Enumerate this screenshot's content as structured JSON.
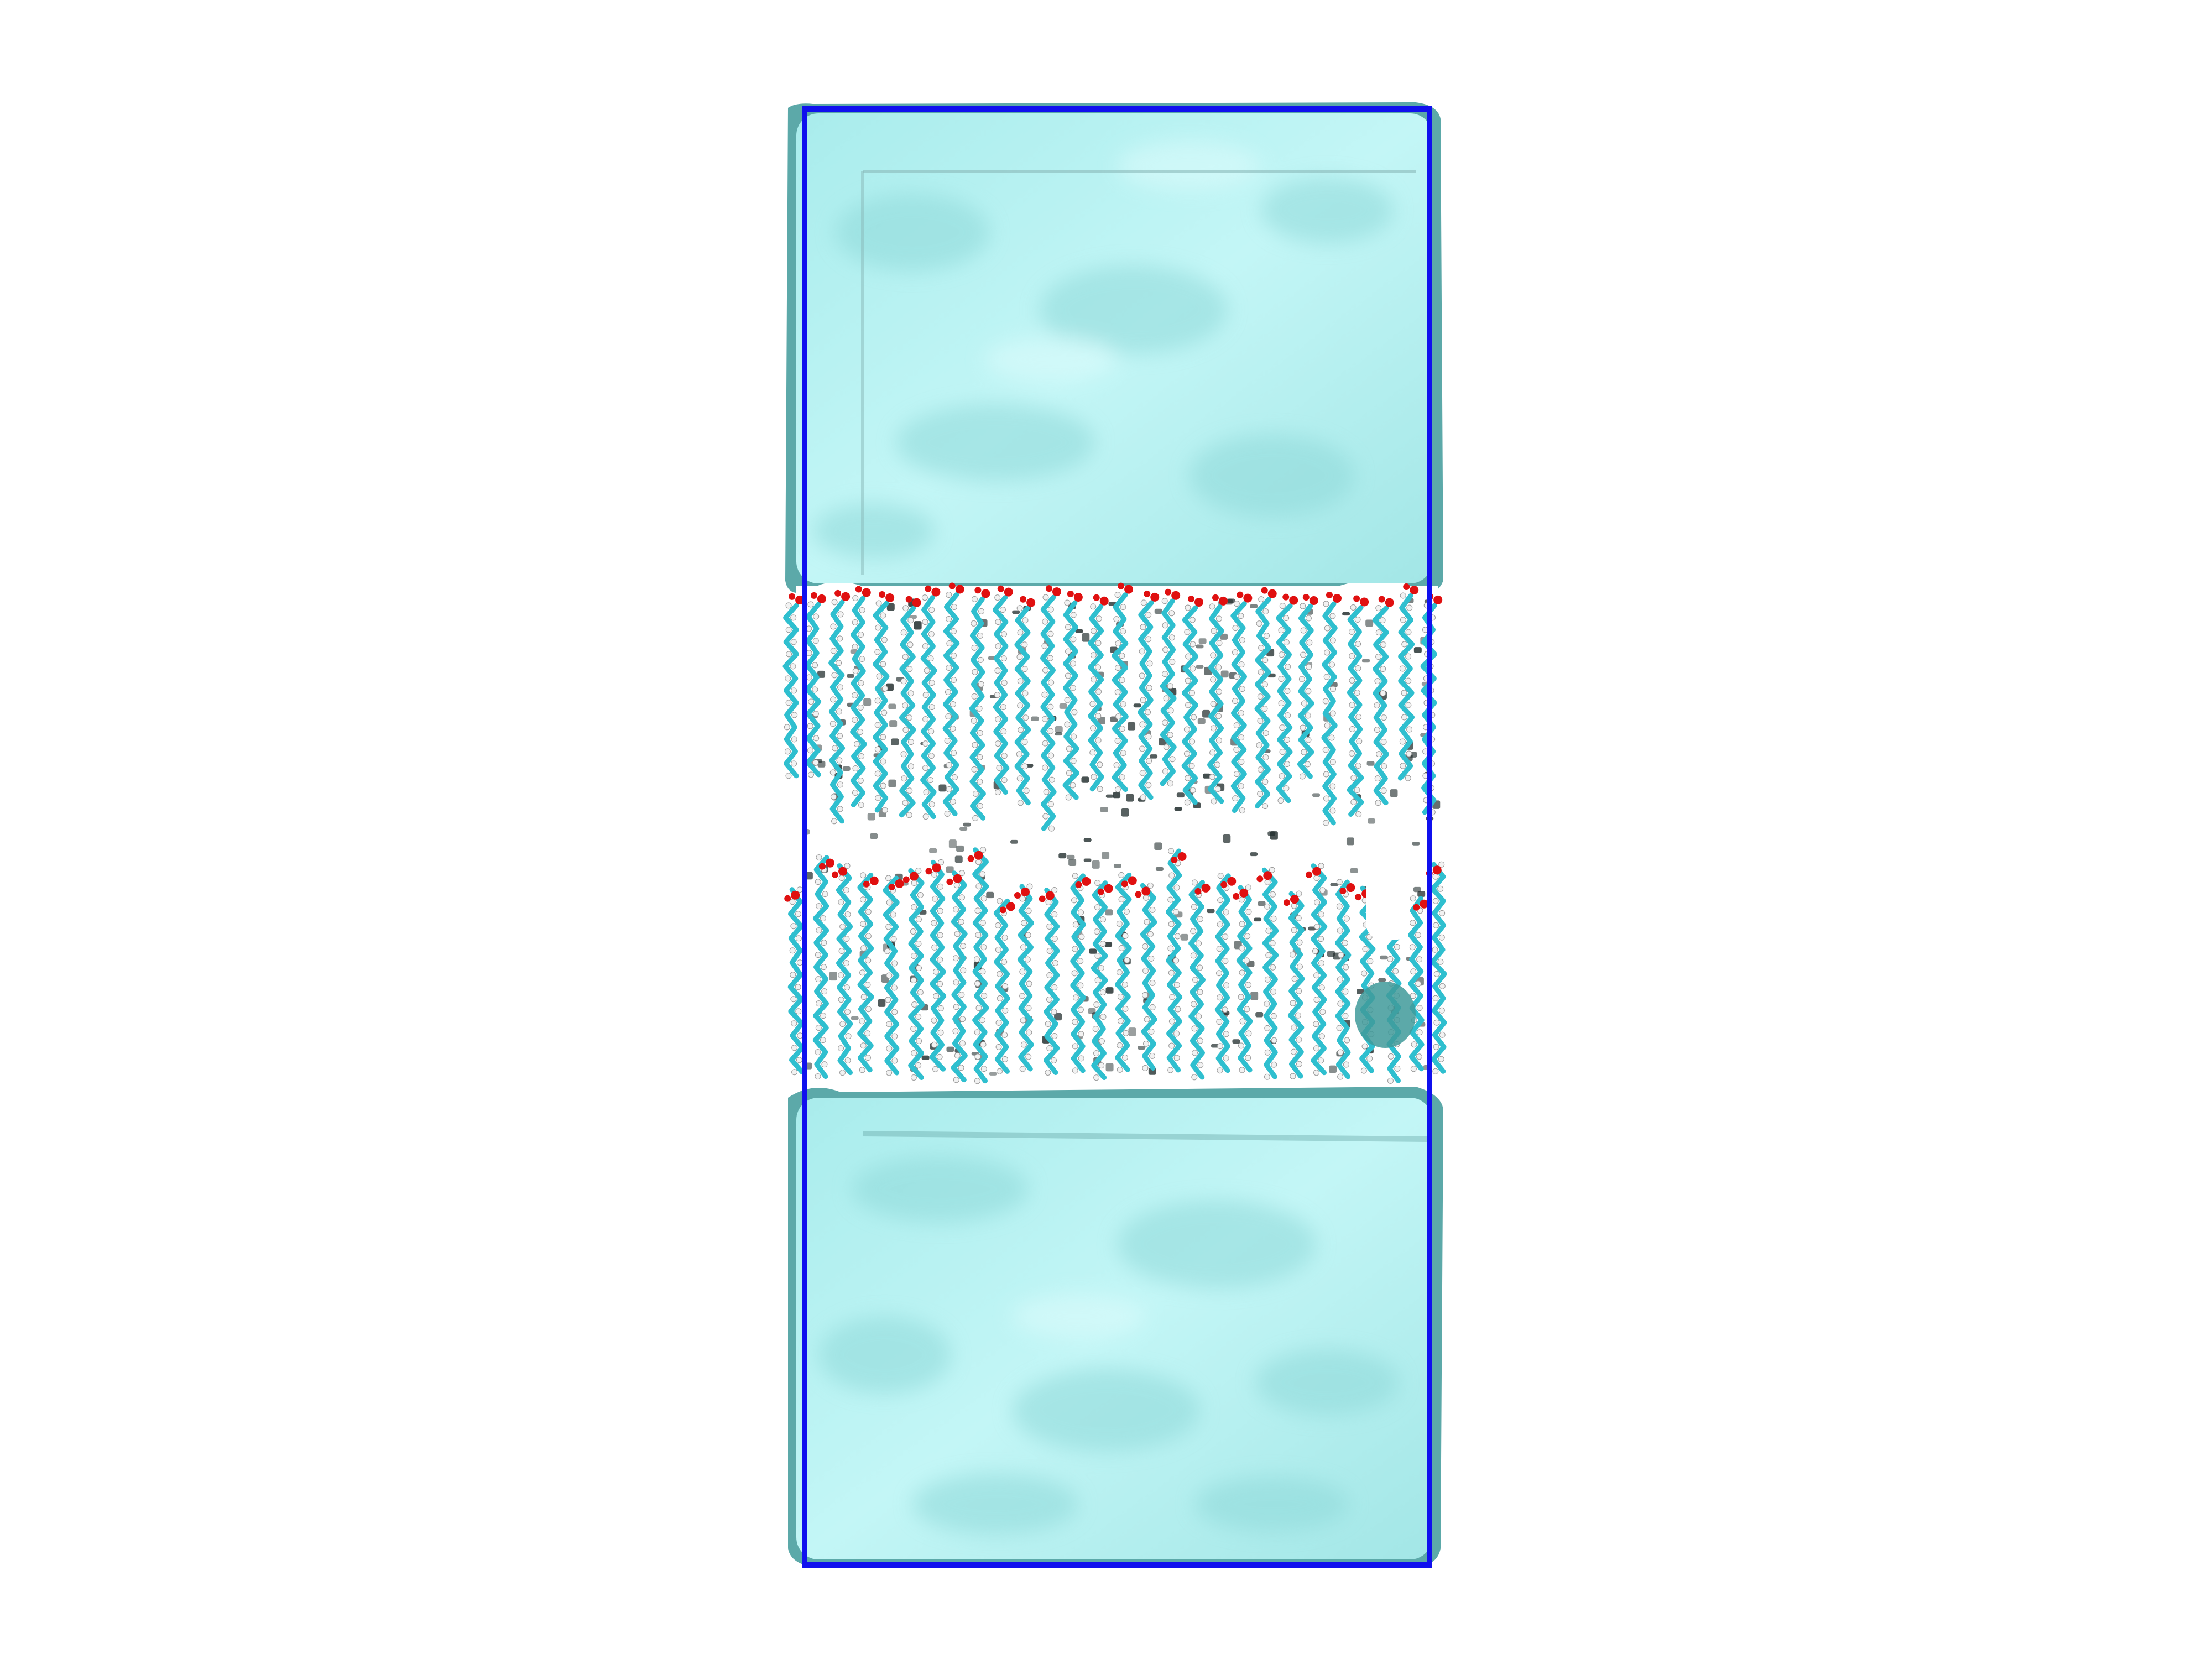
{
  "scene": {
    "background": "#ffffff",
    "water_color": "#b6f0f0",
    "water_edge_color": "#3f9a9a",
    "box_outline_color": "#1010ee",
    "carbon_color": "#2fbfcf",
    "hydrogen_color": "#f2f2f2",
    "oxygen_color": "#e01010",
    "shadow_color": "#1e2a2a"
  }
}
